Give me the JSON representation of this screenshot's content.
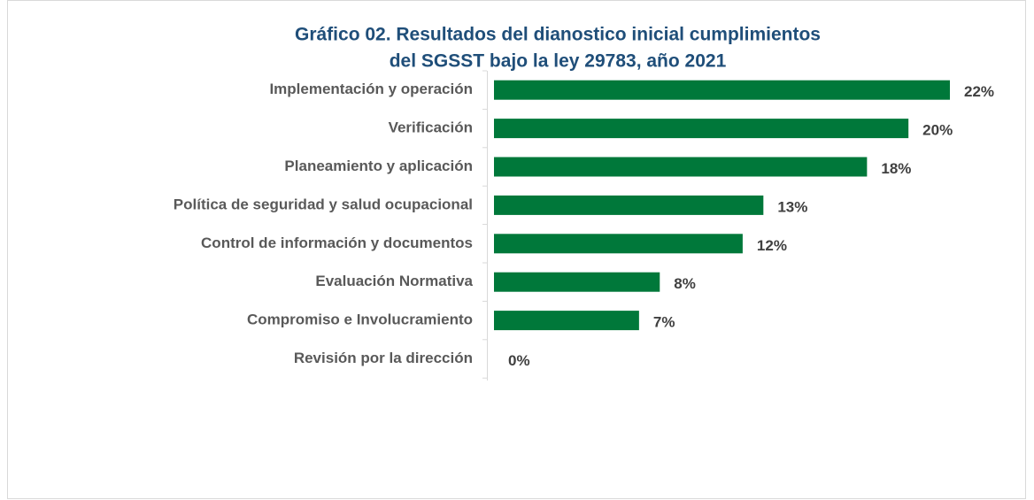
{
  "chart_data": {
    "type": "bar",
    "orientation": "horizontal",
    "title": [
      "Gráfico 02. Resultados del dianostico inicial cumplimientos",
      "del SGSST bajo la ley 29783, año 2021"
    ],
    "categories": [
      "Implementación y operación",
      "Verificación",
      "Planeamiento y aplicación",
      "Política de seguridad y salud ocupacional",
      "Control de información y documentos",
      "Evaluación Normativa",
      "Compromiso e Involucramiento",
      "Revisión por la dirección"
    ],
    "values": [
      22,
      20,
      18,
      13,
      12,
      8,
      7,
      0
    ],
    "value_labels": [
      "22%",
      "20%",
      "18%",
      "13%",
      "12%",
      "8%",
      "7%",
      "0%"
    ],
    "color": "#00783a"
  }
}
